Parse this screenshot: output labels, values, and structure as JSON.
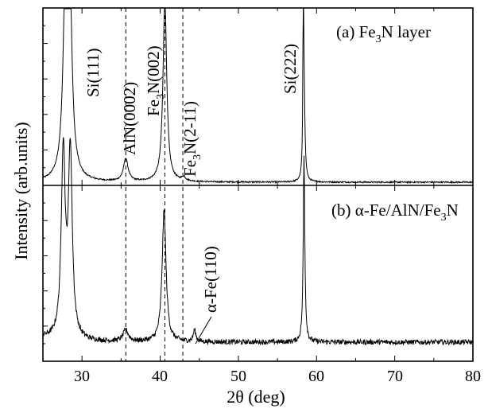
{
  "chart_data": [
    {
      "type": "line",
      "panel": "a",
      "panel_label_parts": [
        "(a) Fe",
        "3",
        "N layer"
      ],
      "x_range": [
        25,
        80
      ],
      "peaks": [
        {
          "x": 27.9,
          "height": 1.3,
          "width": 0.35
        },
        {
          "x": 28.4,
          "height": 1.3,
          "width": 0.35
        },
        {
          "x": 35.6,
          "height": 0.16,
          "width": 0.35
        },
        {
          "x": 40.6,
          "height": 1.3,
          "width": 0.28
        },
        {
          "x": 43.0,
          "height": 0.025,
          "width": 0.3
        },
        {
          "x": 58.4,
          "height": 0.65,
          "width": 0.13
        },
        {
          "x": 58.3,
          "height": 1.3,
          "width": 0.05
        }
      ]
    },
    {
      "type": "line",
      "panel": "b",
      "panel_label_parts": [
        "(b) α-Fe/AlN/Fe",
        "3",
        "N"
      ],
      "x_range": [
        25,
        80
      ],
      "peaks": [
        {
          "x": 27.6,
          "height": 1.3,
          "width": 0.3
        },
        {
          "x": 28.5,
          "height": 1.3,
          "width": 0.3
        },
        {
          "x": 35.6,
          "height": 0.08,
          "width": 0.4
        },
        {
          "x": 40.5,
          "height": 0.92,
          "width": 0.3
        },
        {
          "x": 44.4,
          "height": 0.08,
          "width": 0.2
        },
        {
          "x": 58.4,
          "height": 1.3,
          "width": 0.12
        }
      ]
    }
  ],
  "axes": {
    "xlabel": "2θ (deg)",
    "ylabel": "Intensity (arb.units)",
    "xlim": [
      25,
      80
    ],
    "xticks": [
      "30",
      "40",
      "50",
      "60",
      "70",
      "80"
    ]
  },
  "peak_labels": [
    {
      "id": "si111",
      "parts": [
        "Si(111)"
      ]
    },
    {
      "id": "aln0002",
      "parts": [
        "AlN(0002)"
      ]
    },
    {
      "id": "fe3n002",
      "parts": [
        "Fe",
        "3",
        "N(002)"
      ]
    },
    {
      "id": "fe3n211",
      "parts": [
        "Fe",
        "3",
        "N(2-11)"
      ]
    },
    {
      "id": "si222",
      "parts": [
        "Si(222)"
      ]
    },
    {
      "id": "afe110",
      "parts": [
        "α-Fe(110)"
      ]
    }
  ],
  "reference_lines_x": [
    35.6,
    40.6,
    42.9
  ]
}
